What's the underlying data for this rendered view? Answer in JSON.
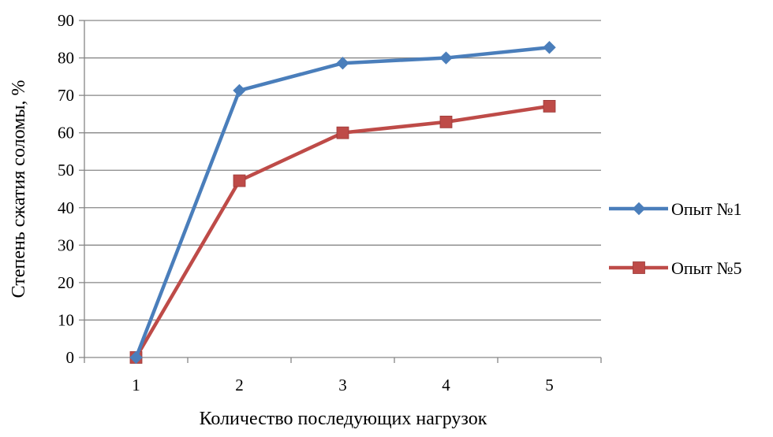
{
  "chart_data": {
    "type": "line",
    "title": "",
    "xlabel": "Количество последующих нагрузок",
    "ylabel": "Степень сжатия соломы, %",
    "categories": [
      "1",
      "2",
      "3",
      "4",
      "5"
    ],
    "ylim": [
      0,
      90
    ],
    "yticks": [
      "0",
      "10",
      "20",
      "30",
      "40",
      "50",
      "60",
      "70",
      "80",
      "90"
    ],
    "grid": true,
    "legend_position": "right",
    "series": [
      {
        "name": "Опыт №1",
        "values": [
          0,
          71.3,
          78.6,
          80,
          82.8
        ],
        "color": "#4a7ebb",
        "marker": "diamond"
      },
      {
        "name": "Опыт №5",
        "values": [
          0,
          47.2,
          60,
          62.9,
          67.1
        ],
        "color": "#be4b48",
        "marker": "square"
      }
    ]
  }
}
